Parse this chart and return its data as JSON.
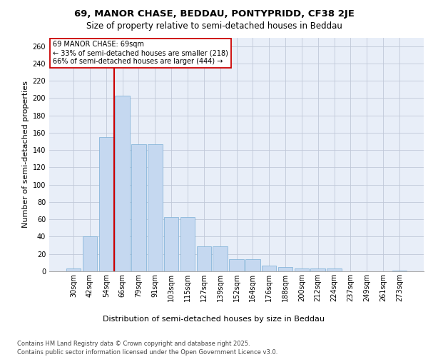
{
  "title_line1": "69, MANOR CHASE, BEDDAU, PONTYPRIDD, CF38 2JE",
  "title_line2": "Size of property relative to semi-detached houses in Beddau",
  "xlabel": "Distribution of semi-detached houses by size in Beddau",
  "ylabel": "Number of semi-detached properties",
  "categories": [
    "30sqm",
    "42sqm",
    "54sqm",
    "66sqm",
    "79sqm",
    "91sqm",
    "103sqm",
    "115sqm",
    "127sqm",
    "139sqm",
    "152sqm",
    "164sqm",
    "176sqm",
    "188sqm",
    "200sqm",
    "212sqm",
    "224sqm",
    "237sqm",
    "249sqm",
    "261sqm",
    "273sqm"
  ],
  "values": [
    3,
    40,
    155,
    203,
    147,
    147,
    63,
    63,
    29,
    29,
    14,
    14,
    7,
    5,
    3,
    3,
    3,
    0,
    0,
    0,
    1
  ],
  "bar_color": "#c5d8f0",
  "bar_edge_color": "#7aaed6",
  "property_bin_index": 3,
  "property_label": "69 MANOR CHASE: 69sqm",
  "pct_smaller": 33,
  "n_smaller": 218,
  "pct_larger": 66,
  "n_larger": 444,
  "vline_color": "#cc0000",
  "annotation_box_edge": "#cc0000",
  "ylim": [
    0,
    270
  ],
  "yticks": [
    0,
    20,
    40,
    60,
    80,
    100,
    120,
    140,
    160,
    180,
    200,
    220,
    240,
    260
  ],
  "grid_color": "#c0c8d8",
  "bg_color": "#e8eef8",
  "footer_line1": "Contains HM Land Registry data © Crown copyright and database right 2025.",
  "footer_line2": "Contains public sector information licensed under the Open Government Licence v3.0.",
  "title_fontsize": 9.5,
  "subtitle_fontsize": 8.5,
  "axis_label_fontsize": 8,
  "tick_fontsize": 7,
  "annotation_fontsize": 7,
  "footer_fontsize": 6
}
